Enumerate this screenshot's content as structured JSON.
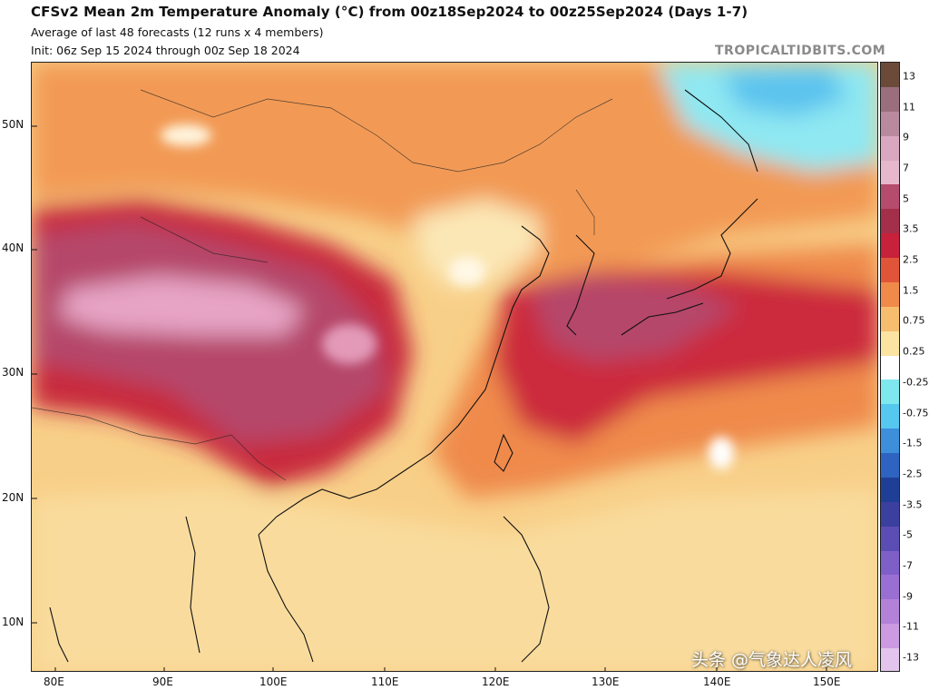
{
  "header": {
    "title": "CFSv2 Mean 2m Temperature Anomaly (°C) from 00z18Sep2024 to 00z25Sep2024 (Days 1-7)",
    "subtitle1": "Average of last 48 forecasts (12 runs x 4 members)",
    "subtitle2": "Init: 06z Sep 15 2024 through 00z Sep 18 2024",
    "brand": "TROPICALTIDBITS.COM"
  },
  "axes": {
    "lat_labels": [
      "50N",
      "40N",
      "30N",
      "20N",
      "10N"
    ],
    "lon_labels": [
      "80E",
      "90E",
      "100E",
      "110E",
      "120E",
      "130E",
      "140E",
      "150E"
    ]
  },
  "colorbar": {
    "tick_labels": [
      "13",
      "11",
      "9",
      "7",
      "5",
      "3.5",
      "2.5",
      "1.5",
      "0.75",
      "0.25",
      "-0.25",
      "-0.75",
      "-1.5",
      "-2.5",
      "-3.5",
      "-5",
      "-7",
      "-9",
      "-11",
      "-13"
    ],
    "segment_colors": [
      "#6b4a3a",
      "#9b6e7e",
      "#b98a9e",
      "#d9a8c0",
      "#e7b8cc",
      "#b54c6d",
      "#a32f4a",
      "#c8213b",
      "#e0553a",
      "#f08a4a",
      "#f6bd6e",
      "#fbe3a2",
      "#ffffff",
      "#7fe8ee",
      "#56c7ee",
      "#3d8edb",
      "#2f63c2",
      "#1f3f96",
      "#3b3f9d",
      "#5a4db3",
      "#7e5fc8",
      "#9a6fd3",
      "#b481d9",
      "#cc9ae0",
      "#e2c4ec"
    ]
  },
  "watermark": "头条 @气象达人凌风"
}
